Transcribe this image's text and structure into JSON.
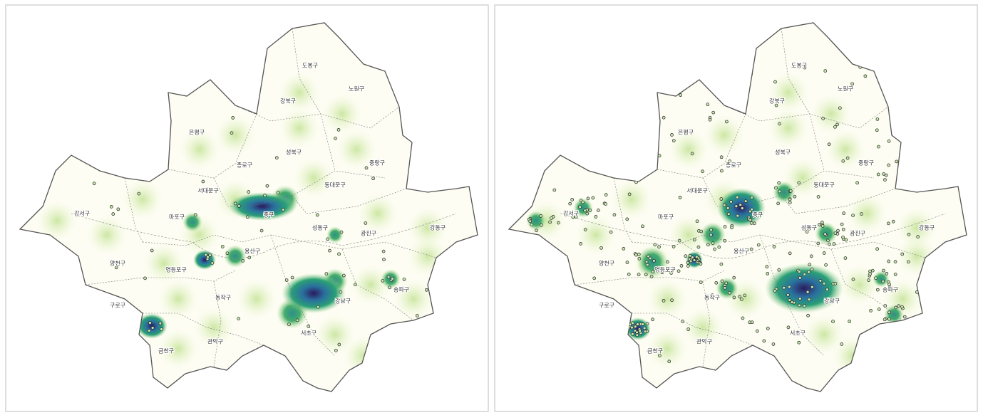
{
  "panels": [
    {
      "districts": [
        "도봉구",
        "노원구",
        "강북구",
        "은평구",
        "성북구",
        "종로구",
        "중랑구",
        "서대문구",
        "동대문구",
        "강서구",
        "마포구",
        "중구",
        "성동구",
        "광진구",
        "강동구",
        "양천구",
        "영등포구",
        "용산구",
        "송파구",
        "구로구",
        "동작구",
        "강남구",
        "서초구",
        "금천구",
        "관악구"
      ]
    },
    {
      "districts": [
        "도봉구",
        "노원구",
        "강북구",
        "은평구",
        "성북구",
        "종로구",
        "중랑구",
        "서대문구",
        "동대문구",
        "강서구",
        "마포구",
        "중구",
        "성동구",
        "광진구",
        "강동구",
        "양천구",
        "영등포구",
        "용산구",
        "송파구",
        "구로구",
        "동작구",
        "강남구",
        "서초구",
        "금천구",
        "관악구"
      ]
    }
  ]
}
